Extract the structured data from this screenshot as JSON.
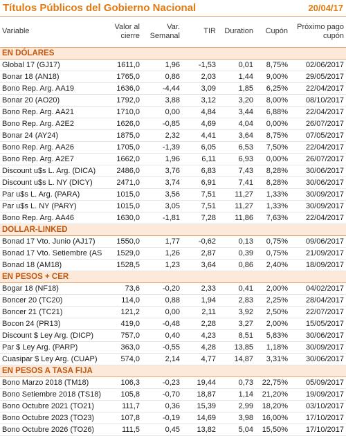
{
  "header": {
    "title": "Títulos Públicos del Gobierno Nacional",
    "date": "20/04/17"
  },
  "table": {
    "columns": [
      "Variable",
      "Valor al cierre",
      "Var. Semanal",
      "TIR",
      "Duration",
      "Cupón",
      "Próximo pago cupón"
    ],
    "sections": [
      {
        "title": "EN DÓLARES",
        "rows": [
          [
            "Global 17 (GJ17)",
            "1611,0",
            "1,96",
            "-1,53",
            "0,01",
            "8,75%",
            "02/06/2017"
          ],
          [
            "Bonar 18 (AN18)",
            "1765,0",
            "0,86",
            "2,03",
            "1,44",
            "9,00%",
            "29/05/2017"
          ],
          [
            "Bono Rep. Arg. AA19",
            "1636,0",
            "-4,44",
            "3,09",
            "1,85",
            "6,25%",
            "22/04/2017"
          ],
          [
            "Bonar 20 (AO20)",
            "1792,0",
            "3,88",
            "3,12",
            "3,20",
            "8,00%",
            "08/10/2017"
          ],
          [
            "Bono Rep. Arg. AA21",
            "1710,0",
            "0,00",
            "4,84",
            "3,44",
            "6,88%",
            "22/04/2017"
          ],
          [
            "Bono Rep. Arg. A2E2",
            "1626,0",
            "-0,85",
            "4,69",
            "4,04",
            "0,00%",
            "26/07/2017"
          ],
          [
            "Bonar 24 (AY24)",
            "1875,0",
            "2,32",
            "4,41",
            "3,64",
            "8,75%",
            "07/05/2017"
          ],
          [
            "Bono Rep. Arg. AA26",
            "1705,0",
            "-1,39",
            "6,05",
            "6,53",
            "7,50%",
            "22/04/2017"
          ],
          [
            "Bono Rep. Arg. A2E7",
            "1662,0",
            "1,96",
            "6,11",
            "6,93",
            "0,00%",
            "26/07/2017"
          ],
          [
            "Discount u$s L. Arg. (DICA)",
            "2486,0",
            "3,76",
            "6,83",
            "7,43",
            "8,28%",
            "30/06/2017"
          ],
          [
            "Discount u$s L. NY (DICY)",
            "2471,0",
            "3,74",
            "6,91",
            "7,41",
            "8,28%",
            "30/06/2017"
          ],
          [
            "Par u$s L. Arg. (PARA)",
            "1015,0",
            "3,56",
            "7,51",
            "11,27",
            "1,33%",
            "30/09/2017"
          ],
          [
            "Par u$s L. NY (PARY)",
            "1015,0",
            "3,05",
            "7,51",
            "11,27",
            "1,33%",
            "30/09/2017"
          ],
          [
            "Bono Rep. Arg. AA46",
            "1630,0",
            "-1,81",
            "7,28",
            "11,86",
            "7,63%",
            "22/04/2017"
          ]
        ]
      },
      {
        "title": "DOLLAR-LINKED",
        "rows": [
          [
            "Bonad 17 Vto. Junio (AJ17)",
            "1550,0",
            "1,77",
            "-0,62",
            "0,13",
            "0,75%",
            "09/06/2017"
          ],
          [
            "Bonad 17 Vto. Setiembre (AS",
            "1529,0",
            "1,26",
            "2,87",
            "0,39",
            "0,75%",
            "21/09/2017"
          ],
          [
            "Bonad 18 (AM18)",
            "1528,5",
            "1,23",
            "3,64",
            "0,86",
            "2,40%",
            "18/09/2017"
          ]
        ]
      },
      {
        "title": "EN PESOS + CER",
        "rows": [
          [
            "Bogar 18 (NF18)",
            "73,6",
            "-0,20",
            "2,33",
            "0,41",
            "2,00%",
            "04/02/2017"
          ],
          [
            "Boncer 20 (TC20)",
            "114,0",
            "0,88",
            "1,94",
            "2,83",
            "2,25%",
            "28/04/2017"
          ],
          [
            "Boncer 21 (TC21)",
            "121,2",
            "0,00",
            "2,11",
            "3,92",
            "2,50%",
            "22/07/2017"
          ],
          [
            "Bocon 24 (PR13)",
            "419,0",
            "-0,48",
            "2,28",
            "3,27",
            "2,00%",
            "15/05/2017"
          ],
          [
            "Discount $ Ley Arg. (DICP)",
            "757,0",
            "0,40",
            "4,23",
            "8,51",
            "5,83%",
            "30/06/2017"
          ],
          [
            "Par $ Ley Arg. (PARP)",
            "363,0",
            "-0,55",
            "4,28",
            "13,85",
            "1,18%",
            "30/09/2017"
          ],
          [
            "Cuasipar $ Ley Arg. (CUAP)",
            "574,0",
            "2,14",
            "4,77",
            "14,87",
            "3,31%",
            "30/06/2017"
          ]
        ]
      },
      {
        "title": "EN PESOS A TASA FIJA",
        "rows": [
          [
            "Bono Marzo 2018 (TM18)",
            "106,3",
            "-0,23",
            "19,44",
            "0,73",
            "22,75%",
            "05/09/2017"
          ],
          [
            "Bono Setiembre 2018 (TS18)",
            "105,8",
            "-0,70",
            "18,87",
            "1,14",
            "21,20%",
            "19/09/2017"
          ],
          [
            "Bono Octubre 2021 (TO21)",
            "111,7",
            "0,36",
            "15,39",
            "2,99",
            "18,20%",
            "03/10/2017"
          ],
          [
            "Bono Octubre 2023 (TO23)",
            "107,8",
            "-0,19",
            "14,69",
            "3,98",
            "16,00%",
            "17/10/2017"
          ],
          [
            "Bono Octubre 2026 (TO26)",
            "111,5",
            "0,45",
            "13,82",
            "5,04",
            "15,50%",
            "17/10/2017"
          ]
        ]
      }
    ]
  }
}
